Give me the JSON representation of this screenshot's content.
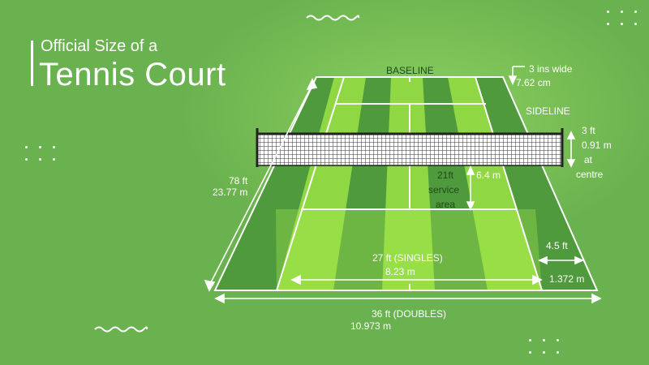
{
  "title": {
    "line1": "Official Size of a",
    "line2": "Tennis Court"
  },
  "labels": {
    "baseline": "BASELINE",
    "sideline": "SIDELINE",
    "line_width_ins": "3 ins wide",
    "line_width_cm": "7.62 cm",
    "net_height_ft": "3 ft",
    "net_height_m": "0.91 m",
    "net_height_at": "at",
    "net_height_centre": "centre",
    "length_ft": "78 ft",
    "length_m": "23.77 m",
    "service_ft": "21ft",
    "service_area_1": "service",
    "service_area_2": "area",
    "service_m": "6.4 m",
    "singles_ft": "27 ft (SINGLES)",
    "singles_m": "8.23 m",
    "alley_ft": "4.5 ft",
    "alley_m": "1.372 m",
    "doubles_ft": "36 ft (DOUBLES)",
    "doubles_m": "10.973 m"
  },
  "colors": {
    "background": "#6ab24f",
    "court_light": "#8fd843",
    "court_dark": "#4f9a3c",
    "lines": "#ffffff",
    "net": "#2a2a2a"
  }
}
